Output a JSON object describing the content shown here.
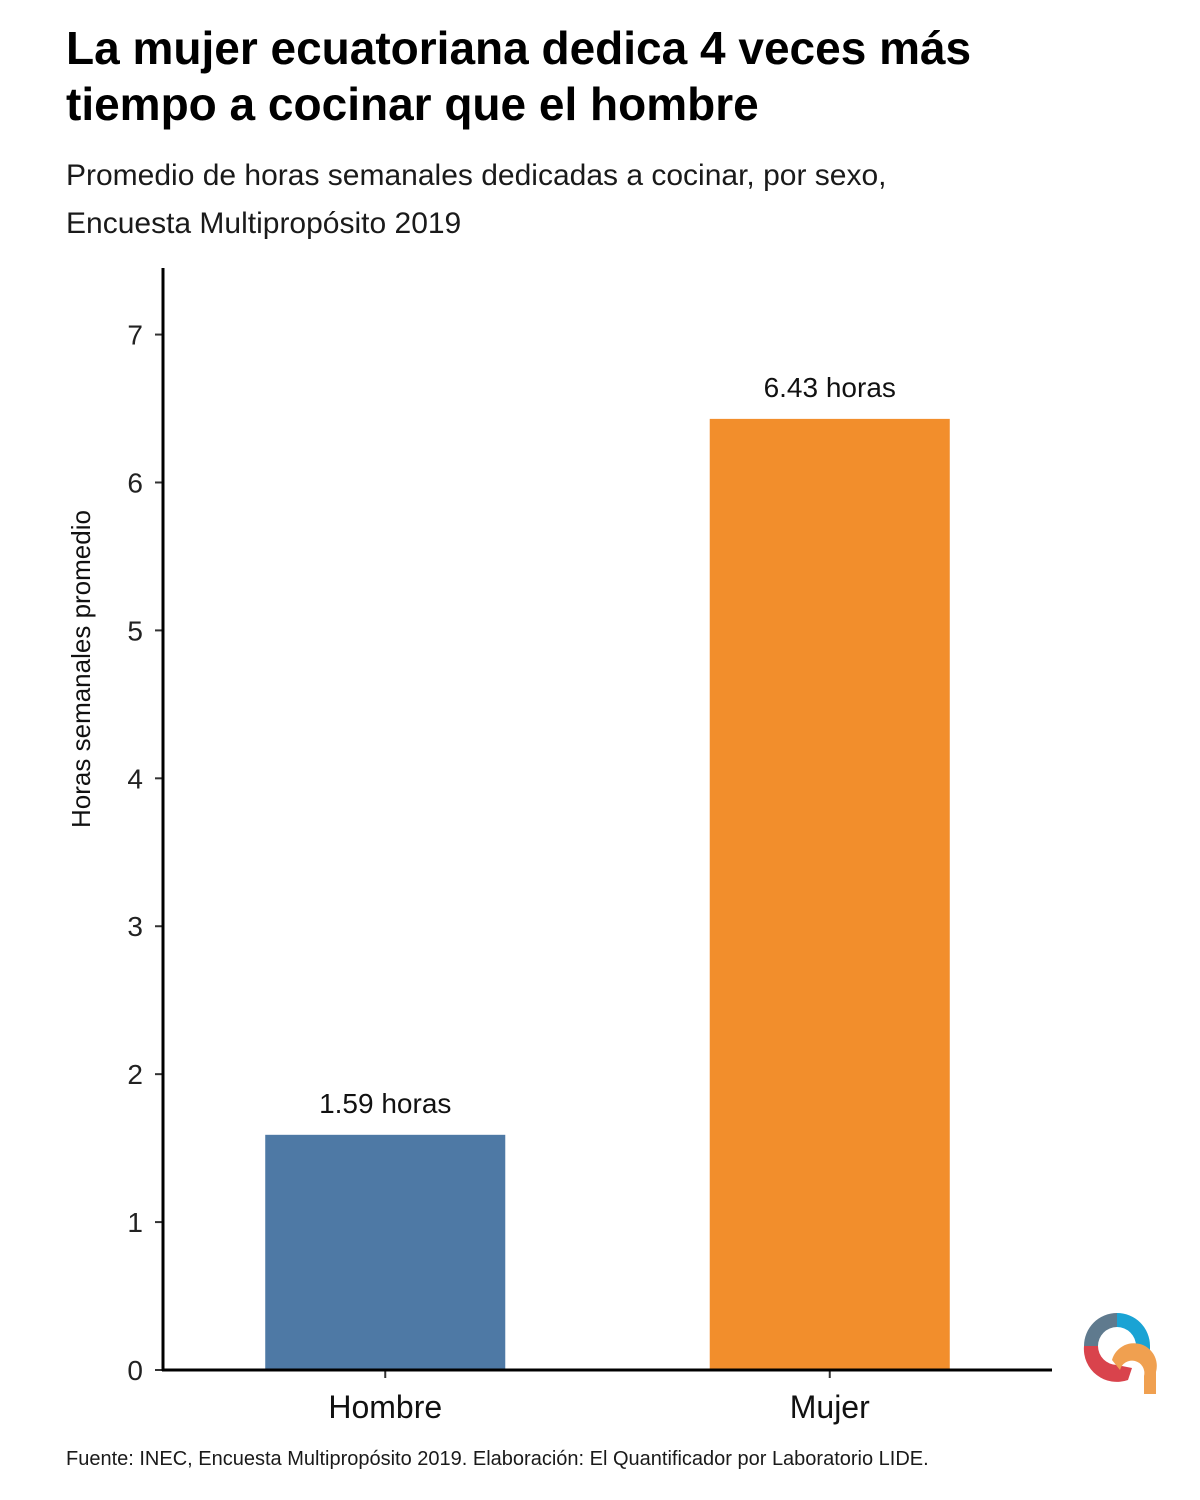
{
  "header": {
    "title_line1": "La mujer ecuatoriana dedica 4 veces más",
    "title_line2": "tiempo a cocinar que el hombre",
    "subtitle_line1": "Promedio de horas semanales dedicadas a cocinar, por sexo,",
    "subtitle_line2": "Encuesta Multipropósito 2019"
  },
  "footer": {
    "source": "Fuente: INEC, Encuesta Multipropósito 2019. Elaboración: El Quantificador por Laboratorio LIDE."
  },
  "chart_data": {
    "type": "bar",
    "categories": [
      "Hombre",
      "Mujer"
    ],
    "values": [
      1.59,
      6.43
    ],
    "data_labels": [
      "1.59 horas",
      "6.43 horas"
    ],
    "colors": [
      "#4e79a5",
      "#f28e2c"
    ],
    "title": "La mujer ecuatoriana dedica 4 veces más tiempo a cocinar que el hombre",
    "subtitle": "Promedio de horas semanales dedicadas a cocinar, por sexo, Encuesta Multipropósito 2019",
    "xlabel": "",
    "ylabel": "Horas semanales promedio",
    "ylim": [
      0,
      7.45
    ],
    "yticks": [
      0,
      1,
      2,
      3,
      4,
      5,
      6,
      7
    ],
    "grid": false,
    "legend": "none"
  },
  "logo": {
    "icon": "quantificador-logo-icon",
    "colors": [
      "#5f7a8e",
      "#1aa3d4",
      "#d9434c",
      "#f0a050"
    ]
  }
}
